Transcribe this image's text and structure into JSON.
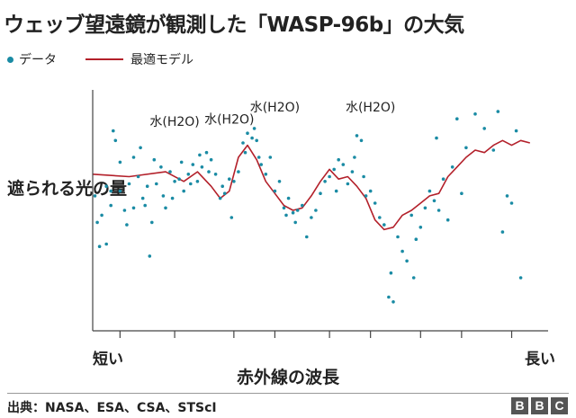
{
  "title": "ウェッブ望遠鏡が観測した「WASP-96b」の大気",
  "legend": {
    "data_label": "データ",
    "model_label": "最適モデル"
  },
  "colors": {
    "points": "#1a8ba4",
    "model": "#b3202a",
    "axis": "#444444"
  },
  "footer": {
    "source": "出典：NASA、ESA、CSA、STScI",
    "brand": [
      "B",
      "B",
      "C"
    ]
  },
  "chart_data": {
    "type": "scatter",
    "title": "ウェッブ望遠鏡が観測した「WASP-96b」の大気",
    "ylabel": "遮られる光の量",
    "xlabel": "赤外線の波長",
    "xlim": [
      0,
      100
    ],
    "ylim": [
      0,
      100
    ],
    "x_ticks": [
      6,
      18,
      31,
      40,
      52,
      61,
      72,
      81,
      92
    ],
    "x_end_labels": {
      "start": "短い",
      "end": "長い"
    },
    "annotations": [
      {
        "text": "水(H2O)",
        "x": 18,
        "y": 85
      },
      {
        "text": "水(H2O)",
        "x": 30,
        "y": 86
      },
      {
        "text": "水(H2O)",
        "x": 40,
        "y": 91
      },
      {
        "text": "水(H2O)",
        "x": 61,
        "y": 91
      }
    ],
    "series": [
      {
        "name": "データ",
        "type": "scatter",
        "points": [
          [
            0.5,
            56
          ],
          [
            1,
            45
          ],
          [
            1.5,
            35
          ],
          [
            2,
            48
          ],
          [
            3,
            60
          ],
          [
            3,
            36
          ],
          [
            4,
            58
          ],
          [
            4,
            52
          ],
          [
            4.5,
            83
          ],
          [
            5,
            79
          ],
          [
            6,
            70
          ],
          [
            6,
            58
          ],
          [
            7,
            50
          ],
          [
            7.5,
            44
          ],
          [
            8,
            61
          ],
          [
            9,
            72
          ],
          [
            9,
            51
          ],
          [
            10,
            64
          ],
          [
            10.5,
            76
          ],
          [
            11,
            55
          ],
          [
            11.5,
            52
          ],
          [
            12,
            60
          ],
          [
            12.5,
            31
          ],
          [
            13,
            45
          ],
          [
            13.5,
            71
          ],
          [
            14,
            61
          ],
          [
            15,
            68
          ],
          [
            15.5,
            56
          ],
          [
            16,
            51
          ],
          [
            17,
            66
          ],
          [
            17.5,
            55
          ],
          [
            18,
            62
          ],
          [
            19,
            63
          ],
          [
            19.5,
            70
          ],
          [
            20,
            58
          ],
          [
            21,
            65
          ],
          [
            21.5,
            61
          ],
          [
            22,
            69
          ],
          [
            23,
            62
          ],
          [
            23.5,
            73
          ],
          [
            24,
            68
          ],
          [
            25,
            74
          ],
          [
            25.5,
            66
          ],
          [
            26,
            71
          ],
          [
            27,
            65
          ],
          [
            28,
            55
          ],
          [
            28.5,
            60
          ],
          [
            29,
            57
          ],
          [
            30,
            63
          ],
          [
            30.5,
            47
          ],
          [
            31,
            62
          ],
          [
            32,
            66
          ],
          [
            33,
            78
          ],
          [
            33.5,
            74
          ],
          [
            34,
            82
          ],
          [
            35,
            80
          ],
          [
            35.5,
            84
          ],
          [
            36,
            79
          ],
          [
            36.5,
            72
          ],
          [
            37,
            69
          ],
          [
            38,
            65
          ],
          [
            39,
            72
          ],
          [
            40,
            58
          ],
          [
            41,
            62
          ],
          [
            42,
            51
          ],
          [
            42.5,
            48
          ],
          [
            43,
            55
          ],
          [
            44,
            49
          ],
          [
            44.5,
            45
          ],
          [
            45,
            50
          ],
          [
            46,
            52
          ],
          [
            47,
            39
          ],
          [
            48,
            47
          ],
          [
            49,
            50
          ],
          [
            50,
            57
          ],
          [
            51,
            62
          ],
          [
            52,
            64
          ],
          [
            53,
            67
          ],
          [
            53.5,
            58
          ],
          [
            54,
            71
          ],
          [
            55,
            69
          ],
          [
            56,
            61
          ],
          [
            57,
            66
          ],
          [
            57.5,
            72
          ],
          [
            58,
            81
          ],
          [
            59,
            79
          ],
          [
            59.5,
            64
          ],
          [
            60,
            56
          ],
          [
            61,
            58
          ],
          [
            62,
            53
          ],
          [
            63,
            47
          ],
          [
            64,
            44
          ],
          [
            65,
            14
          ],
          [
            65.5,
            24
          ],
          [
            66,
            12
          ],
          [
            67,
            39
          ],
          [
            68,
            33
          ],
          [
            69,
            29
          ],
          [
            70,
            48
          ],
          [
            70.5,
            22
          ],
          [
            71,
            38
          ],
          [
            72,
            43
          ],
          [
            73,
            51
          ],
          [
            74,
            58
          ],
          [
            75,
            54
          ],
          [
            75.5,
            80
          ],
          [
            76,
            50
          ],
          [
            77,
            63
          ],
          [
            78,
            46
          ],
          [
            79,
            68
          ],
          [
            80,
            88
          ],
          [
            81,
            57
          ],
          [
            82,
            76
          ],
          [
            84,
            90
          ],
          [
            86,
            84
          ],
          [
            88,
            75
          ],
          [
            89,
            91
          ],
          [
            90,
            41
          ],
          [
            91,
            56
          ],
          [
            92,
            53
          ],
          [
            93,
            83
          ],
          [
            94,
            22
          ]
        ]
      },
      {
        "name": "最適モデル",
        "type": "line",
        "points": [
          [
            0,
            65
          ],
          [
            8,
            64
          ],
          [
            16,
            66
          ],
          [
            20,
            62
          ],
          [
            23,
            66
          ],
          [
            26,
            60
          ],
          [
            28,
            55
          ],
          [
            30,
            58
          ],
          [
            32,
            72
          ],
          [
            34,
            77
          ],
          [
            36,
            71
          ],
          [
            38,
            62
          ],
          [
            40,
            57
          ],
          [
            42,
            52
          ],
          [
            44,
            50
          ],
          [
            46,
            51
          ],
          [
            48,
            56
          ],
          [
            50,
            62
          ],
          [
            52,
            67
          ],
          [
            54,
            63
          ],
          [
            56,
            64
          ],
          [
            58,
            60
          ],
          [
            60,
            55
          ],
          [
            62,
            46
          ],
          [
            64,
            42
          ],
          [
            66,
            43
          ],
          [
            68,
            48
          ],
          [
            70,
            50
          ],
          [
            72,
            53
          ],
          [
            74,
            56
          ],
          [
            76,
            57
          ],
          [
            78,
            64
          ],
          [
            80,
            68
          ],
          [
            82,
            72
          ],
          [
            84,
            75
          ],
          [
            86,
            74
          ],
          [
            88,
            77
          ],
          [
            90,
            79
          ],
          [
            92,
            77
          ],
          [
            94,
            79
          ],
          [
            96,
            78
          ]
        ]
      }
    ]
  }
}
